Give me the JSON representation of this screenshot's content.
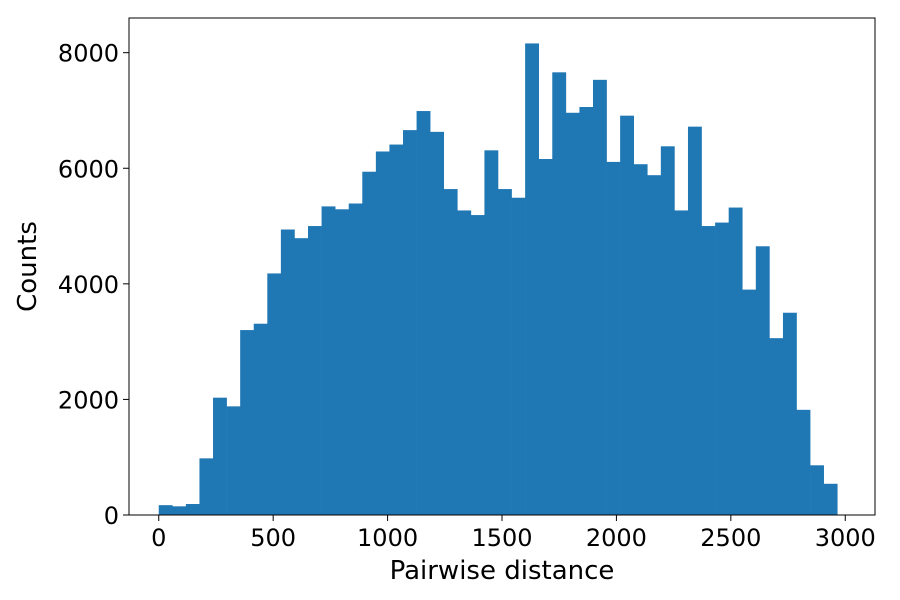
{
  "chart_data": {
    "type": "bar",
    "title": "",
    "xlabel": "Pairwise distance",
    "ylabel": "Counts",
    "xlim": [
      -130,
      3130
    ],
    "ylim": [
      0,
      8600
    ],
    "xticks": [
      0,
      500,
      1000,
      1500,
      2000,
      2500,
      3000
    ],
    "xtick_labels": [
      "0",
      "500",
      "1000",
      "1500",
      "2000",
      "2500",
      "3000"
    ],
    "yticks": [
      0,
      2000,
      4000,
      6000,
      8000
    ],
    "ytick_labels": [
      "0",
      "2000",
      "4000",
      "6000",
      "8000"
    ],
    "grid": false,
    "color": "#1f77b4",
    "bin_start": 0,
    "bin_width": 59.3,
    "values": [
      170,
      150,
      190,
      980,
      2030,
      1880,
      3200,
      3310,
      4180,
      4940,
      4790,
      5000,
      5340,
      5290,
      5390,
      5940,
      6290,
      6410,
      6660,
      6990,
      6630,
      5640,
      5270,
      5190,
      6310,
      5640,
      5490,
      8160,
      6160,
      7660,
      6960,
      7060,
      7530,
      6110,
      6910,
      6070,
      5880,
      6380,
      5270,
      6720,
      5000,
      5060,
      5320,
      3900,
      4650,
      3060,
      3500,
      1820,
      860,
      540
    ]
  }
}
